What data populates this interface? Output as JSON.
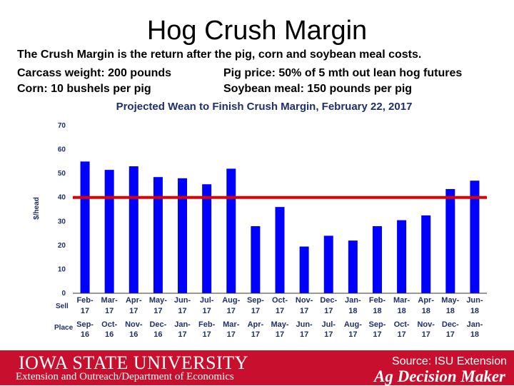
{
  "slide": {
    "title": "Hog Crush Margin",
    "desc_line1": "The Crush Margin is the return after the pig, corn and soybean meal costs.",
    "desc_line2_left": "Carcass weight:  200 pounds",
    "desc_line2_right": "Pig price:  50% of 5 mth out lean hog futures",
    "desc_line3_left": "Corn:  10 bushels per pig",
    "desc_line3_right": "Soybean meal:  150 pounds per pig"
  },
  "chart_data": {
    "type": "bar",
    "title": "Projected Wean to Finish Crush Margin, February 22, 2017",
    "ylabel": "$/head",
    "ylim": [
      0,
      70
    ],
    "yticks": [
      0,
      10,
      20,
      30,
      40,
      50,
      60,
      70
    ],
    "grid": false,
    "row_labels": [
      "Sell",
      "Place"
    ],
    "categories": [
      {
        "sell": [
          "Feb-",
          "17"
        ],
        "place": [
          "Sep-",
          "16"
        ]
      },
      {
        "sell": [
          "Mar-",
          "17"
        ],
        "place": [
          "Oct-",
          "16"
        ]
      },
      {
        "sell": [
          "Apr-",
          "17"
        ],
        "place": [
          "Nov-",
          "16"
        ]
      },
      {
        "sell": [
          "May-",
          "17"
        ],
        "place": [
          "Dec-",
          "16"
        ]
      },
      {
        "sell": [
          "Jun-",
          "17"
        ],
        "place": [
          "Jan-",
          "17"
        ]
      },
      {
        "sell": [
          "Jul-",
          "17"
        ],
        "place": [
          "Feb-",
          "17"
        ]
      },
      {
        "sell": [
          "Aug-",
          "17"
        ],
        "place": [
          "Mar-",
          "17"
        ]
      },
      {
        "sell": [
          "Sep-",
          "17"
        ],
        "place": [
          "Apr-",
          "17"
        ]
      },
      {
        "sell": [
          "Oct-",
          "17"
        ],
        "place": [
          "May-",
          "17"
        ]
      },
      {
        "sell": [
          "Nov-",
          "17"
        ],
        "place": [
          "Jun-",
          "17"
        ]
      },
      {
        "sell": [
          "Dec-",
          "17"
        ],
        "place": [
          "Jul-",
          "17"
        ]
      },
      {
        "sell": [
          "Jan-",
          "18"
        ],
        "place": [
          "Aug-",
          "17"
        ]
      },
      {
        "sell": [
          "Feb-",
          "18"
        ],
        "place": [
          "Sep-",
          "17"
        ]
      },
      {
        "sell": [
          "Mar-",
          "18"
        ],
        "place": [
          "Oct-",
          "17"
        ]
      },
      {
        "sell": [
          "Apr-",
          "18"
        ],
        "place": [
          "Nov-",
          "17"
        ]
      },
      {
        "sell": [
          "May-",
          "18"
        ],
        "place": [
          "Dec-",
          "17"
        ]
      },
      {
        "sell": [
          "Jun-",
          "18"
        ],
        "place": [
          "Jan-",
          "18"
        ]
      }
    ],
    "values": [
      55,
      51.5,
      53,
      48.5,
      48,
      45.5,
      52,
      28,
      36,
      19.5,
      24,
      22,
      28,
      30.5,
      32.5,
      43.5,
      47
    ],
    "reference_line": 40,
    "bar_color": "#0000ff",
    "reference_color": "#e00000"
  },
  "footer": {
    "university": "IOWA STATE UNIVERSITY",
    "department": "Extension and Outreach/Department of Economics",
    "source": "Source: ISU Extension",
    "brand": "Ag Decision Maker",
    "color": "#c8102e"
  }
}
